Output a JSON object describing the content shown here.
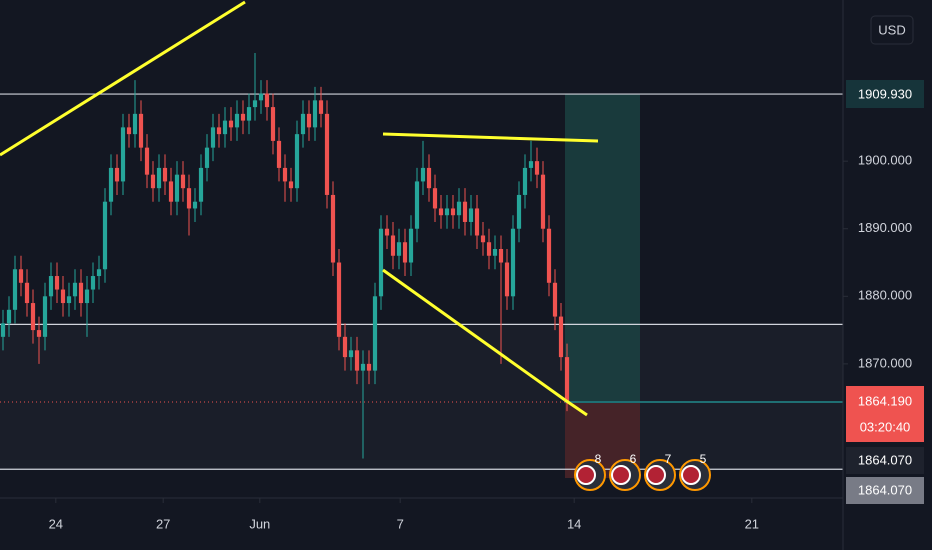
{
  "chart_data": {
    "type": "candlestick",
    "currency": "USD",
    "open": [
      1874,
      1876,
      1878,
      1884,
      1882,
      1879,
      1875,
      1874,
      1880,
      1883,
      1881,
      1879,
      1880,
      1882,
      1879,
      1881,
      1883,
      1884,
      1894,
      1899,
      1897,
      1905,
      1904,
      1907,
      1902,
      1898,
      1896,
      1899,
      1897,
      1894,
      1898,
      1896,
      1893,
      1894,
      1899,
      1902,
      1905,
      1904,
      1906,
      1905,
      1907,
      1906,
      1908,
      1909,
      1910,
      1908,
      1903,
      1899,
      1897,
      1896,
      1904,
      1907,
      1905,
      1909,
      1907,
      1895,
      1885,
      1874,
      1871,
      1872,
      1869,
      1870,
      1869,
      1880,
      1890,
      1889,
      1886,
      1888,
      1885,
      1890,
      1897,
      1899,
      1896,
      1893,
      1892,
      1893,
      1892,
      1894,
      1891,
      1893,
      1889,
      1888,
      1886,
      1887,
      1885,
      1880,
      1890,
      1895,
      1899,
      1900,
      1898,
      1890,
      1882,
      1877,
      1871
    ],
    "high": [
      1878,
      1880,
      1886,
      1886,
      1884,
      1881,
      1877,
      1882,
      1885,
      1885,
      1883,
      1882,
      1884,
      1884,
      1883,
      1885,
      1886,
      1896,
      1901,
      1901,
      1907,
      1907,
      1912,
      1909,
      1904,
      1900,
      1901,
      1901,
      1899,
      1900,
      1900,
      1898,
      1896,
      1901,
      1904,
      1907,
      1907,
      1908,
      1908,
      1909,
      1909,
      1910,
      1916,
      1912,
      1912,
      1910,
      1905,
      1901,
      1899,
      1906,
      1909,
      1909,
      1911,
      1911,
      1909,
      1897,
      1887,
      1876,
      1874,
      1874,
      1872,
      1872,
      1882,
      1892,
      1892,
      1891,
      1890,
      1890,
      1892,
      1899,
      1903,
      1901,
      1898,
      1895,
      1895,
      1895,
      1896,
      1896,
      1895,
      1895,
      1891,
      1890,
      1889,
      1889,
      1887,
      1892,
      1897,
      1901,
      1903,
      1902,
      1900,
      1892,
      1884,
      1879,
      1873
    ],
    "low": [
      1872,
      1874,
      1876,
      1880,
      1877,
      1873,
      1870,
      1872,
      1878,
      1879,
      1877,
      1877,
      1878,
      1877,
      1874,
      1879,
      1881,
      1882,
      1892,
      1895,
      1895,
      1902,
      1902,
      1900,
      1896,
      1894,
      1894,
      1895,
      1892,
      1892,
      1894,
      1889,
      1891,
      1892,
      1897,
      1900,
      1902,
      1902,
      1903,
      1903,
      1904,
      1904,
      1906,
      1907,
      1906,
      1901,
      1897,
      1894,
      1894,
      1894,
      1902,
      1903,
      1903,
      1905,
      1893,
      1883,
      1872,
      1869,
      1869,
      1867,
      1856,
      1867,
      1867,
      1878,
      1887,
      1884,
      1884,
      1883,
      1883,
      1888,
      1895,
      1894,
      1891,
      1890,
      1890,
      1890,
      1890,
      1889,
      1889,
      1887,
      1886,
      1884,
      1884,
      1870,
      1878,
      1878,
      1888,
      1893,
      1897,
      1896,
      1888,
      1880,
      1875,
      1869,
      1863
    ],
    "close": [
      1876,
      1878,
      1884,
      1882,
      1879,
      1875,
      1874,
      1880,
      1883,
      1881,
      1879,
      1880,
      1882,
      1879,
      1881,
      1883,
      1884,
      1894,
      1899,
      1897,
      1905,
      1904,
      1907,
      1902,
      1898,
      1896,
      1899,
      1897,
      1894,
      1898,
      1896,
      1893,
      1894,
      1899,
      1902,
      1905,
      1904,
      1906,
      1905,
      1907,
      1906,
      1908,
      1909,
      1910,
      1908,
      1903,
      1899,
      1897,
      1896,
      1904,
      1907,
      1905,
      1909,
      1907,
      1895,
      1885,
      1874,
      1871,
      1872,
      1869,
      1870,
      1869,
      1880,
      1890,
      1889,
      1886,
      1888,
      1885,
      1890,
      1897,
      1899,
      1896,
      1893,
      1892,
      1893,
      1892,
      1894,
      1891,
      1893,
      1889,
      1888,
      1886,
      1887,
      1885,
      1880,
      1890,
      1895,
      1899,
      1900,
      1898,
      1890,
      1882,
      1877,
      1871,
      1864.19
    ],
    "up_color": "#26a69a",
    "down_color": "#ef5350",
    "levels": [
      1909.93,
      1875.85,
      1854.4
    ],
    "xlim": [
      -0.5,
      140
    ],
    "xticks": [
      {
        "value": 8.8,
        "label": "24"
      },
      {
        "value": 26.7,
        "label": "27"
      },
      {
        "value": 42.8,
        "label": "Jun"
      },
      {
        "value": 66.2,
        "label": "7"
      },
      {
        "value": 95.2,
        "label": "14"
      },
      {
        "value": 124.8,
        "label": "21"
      }
    ],
    "ylim": [
      1850.15,
      1923.85
    ],
    "yticks": [
      {
        "value": 1870,
        "label": "1870.000"
      },
      {
        "value": 1880,
        "label": "1880.000"
      },
      {
        "value": 1890,
        "label": "1890.000"
      },
      {
        "value": 1900,
        "label": "1900.000"
      }
    ],
    "price_tags": [
      "1909.930",
      "1864.190",
      "03:20:40",
      "1864.070",
      "1864.070"
    ],
    "event_badges": [
      "8",
      "6",
      "7",
      "5"
    ]
  }
}
